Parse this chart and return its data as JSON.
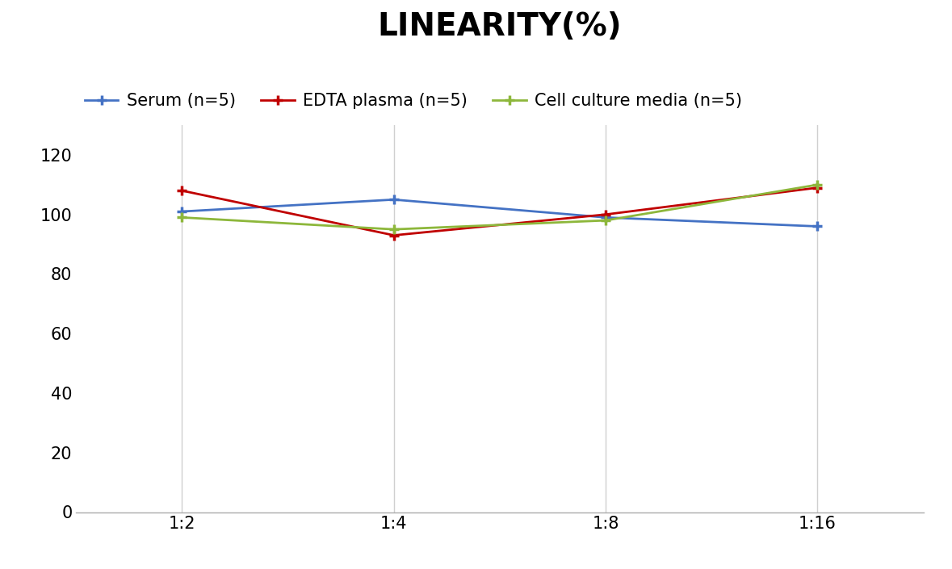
{
  "title": "LINEARITY(%)",
  "title_fontsize": 28,
  "title_fontweight": "bold",
  "x_labels": [
    "1:2",
    "1:4",
    "1:8",
    "1:16"
  ],
  "x_positions": [
    0,
    1,
    2,
    3
  ],
  "serum": [
    101,
    105,
    99,
    96
  ],
  "edta": [
    108,
    93,
    100,
    109
  ],
  "cell": [
    99,
    95,
    98,
    110
  ],
  "serum_color": "#4472C4",
  "edta_color": "#C00000",
  "cell_color": "#8DB73B",
  "serum_label": "Serum (n=5)",
  "edta_label": "EDTA plasma (n=5)",
  "cell_label": "Cell culture media (n=5)",
  "ylim": [
    0,
    130
  ],
  "yticks": [
    0,
    20,
    40,
    60,
    80,
    100,
    120
  ],
  "background_color": "#ffffff",
  "grid_color": "#d0d0d0",
  "legend_fontsize": 15,
  "axis_fontsize": 15,
  "linewidth": 2.0,
  "markersize": 9
}
